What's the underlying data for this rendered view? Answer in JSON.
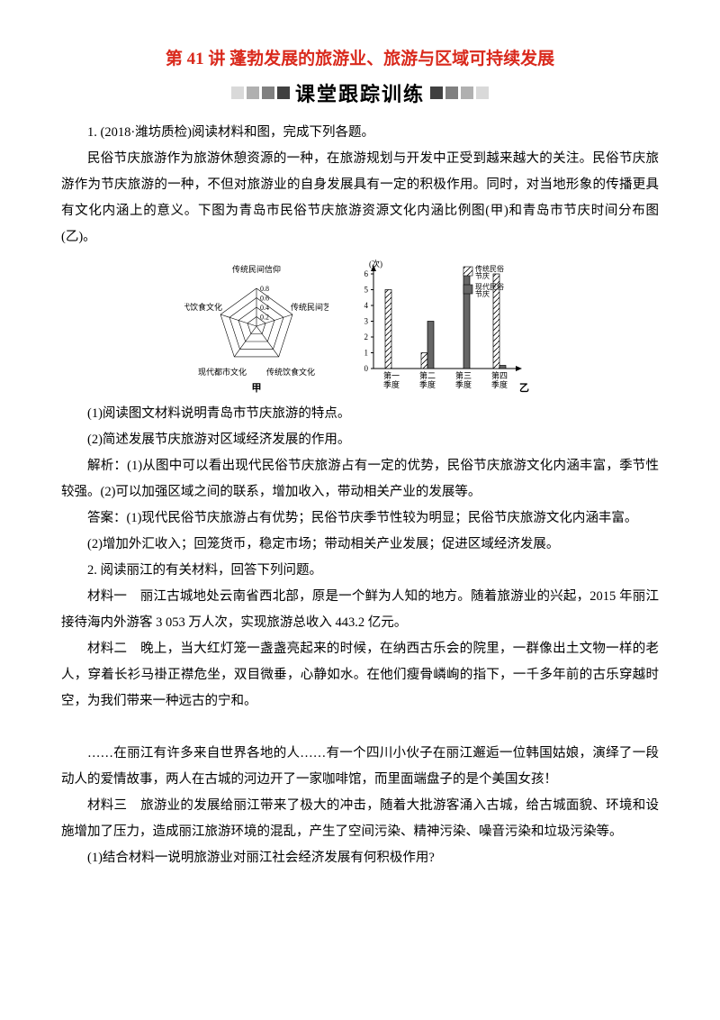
{
  "title": {
    "prefix": "第 ",
    "number": "41",
    "suffix": " 讲 蓬勃发展的旅游业、旅游与区域可持续发展",
    "prefix_color": "#d9291c",
    "number_color": "#d9291c",
    "suffix_color": "#d9291c"
  },
  "banner": {
    "text": "课堂跟踪训练",
    "squares_gradient": [
      "#d9d9d9",
      "#b0b0b0",
      "#808080",
      "#404040"
    ],
    "reverse_side": true,
    "text_color": "#1a1a1a"
  },
  "paragraphs": [
    "1. (2018·潍坊质检)阅读材料和图，完成下列各题。",
    "民俗节庆旅游作为旅游休憩资源的一种，在旅游规划与开发中正受到越来越大的关注。民俗节庆旅游作为节庆旅游的一种，不但对旅游业的自身发展具有一定的积极作用。同时，对当地形象的传播更具有文化内涵上的意义。下图为青岛市民俗节庆旅游资源文化内涵比例图(甲)和青岛市节庆时间分布图(乙)。"
  ],
  "radar_chart": {
    "type": "radar",
    "axes": [
      "传统民间信仰",
      "传统民间艺术",
      "传统饮食文化",
      "现代都市文化",
      "现代饮食文化"
    ],
    "ticks": [
      "0.2",
      "0.4",
      "0.6",
      "0.8"
    ],
    "label": "甲",
    "line_color": "#000000",
    "background": "#ffffff",
    "font_size": 9
  },
  "bar_chart": {
    "type": "bar",
    "ylabel": "(次)",
    "ylim": [
      0,
      6
    ],
    "yticks": [
      0,
      1,
      2,
      3,
      4,
      5,
      6
    ],
    "categories": [
      "第一季度",
      "第二季度",
      "第三季度",
      "第四季度"
    ],
    "series": [
      {
        "name": "传统民俗节庆",
        "color": "#ffffff",
        "hatch": "diag",
        "values": [
          5,
          1,
          0,
          6
        ]
      },
      {
        "name": "现代民俗节庆",
        "color": "#666666",
        "values": [
          0,
          3,
          6,
          0.2
        ]
      }
    ],
    "label": "乙",
    "bar_width": 0.35,
    "border_color": "#000000",
    "font_size": 9
  },
  "after_chart": [
    "(1)阅读图文材料说明青岛市节庆旅游的特点。",
    "(2)简述发展节庆旅游对区域经济发展的作用。",
    "解析：(1)从图中可以看出现代民俗节庆旅游占有一定的优势，民俗节庆旅游文化内涵丰富，季节性较强。(2)可以加强区域之间的联系，增加收入，带动相关产业的发展等。",
    "答案：(1)现代民俗节庆旅游占有优势；民俗节庆季节性较为明显；民俗节庆旅游文化内涵丰富。",
    "(2)增加外汇收入；回笼货币，稳定市场；带动相关产业发展；促进区域经济发展。",
    "2. 阅读丽江的有关材料，回答下列问题。",
    "材料一　丽江古城地处云南省西北部，原是一个鲜为人知的地方。随着旅游业的兴起，2015 年丽江接待海内外游客 3 053 万人次，实现旅游总收入 443.2 亿元。",
    "材料二　晚上，当大红灯笼一盏盏亮起来的时候，在纳西古乐会的院里，一群像出土文物一样的老人，穿着长衫马褂正襟危坐，双目微垂，心静如水。在他们瘦骨嶙峋的指下，一千多年前的古乐穿越时空，为我们带来一种远古的宁和。",
    "",
    "……在丽江有许多来自世界各地的人……有一个四川小伙子在丽江邂逅一位韩国姑娘，演绎了一段动人的爱情故事，两人在古城的河边开了一家咖啡馆，而里面端盘子的是个美国女孩！",
    "材料三　旅游业的发展给丽江带来了极大的冲击，随着大批游客涌入古城，给古城面貌、环境和设施增加了压力，造成丽江旅游环境的混乱，产生了空间污染、精神污染、噪音污染和垃圾污染等。",
    "(1)结合材料一说明旅游业对丽江社会经济发展有何积极作用?"
  ]
}
